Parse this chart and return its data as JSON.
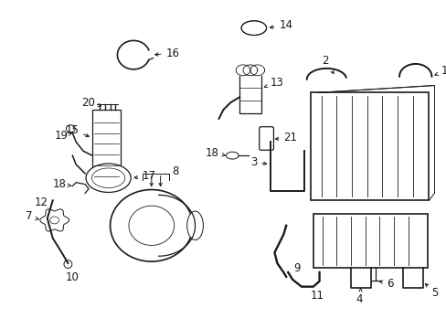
{
  "bg_color": "#ffffff",
  "line_color": "#1a1a1a",
  "fig_width": 4.89,
  "fig_height": 3.6,
  "dpi": 100,
  "label_fs": 8.5
}
